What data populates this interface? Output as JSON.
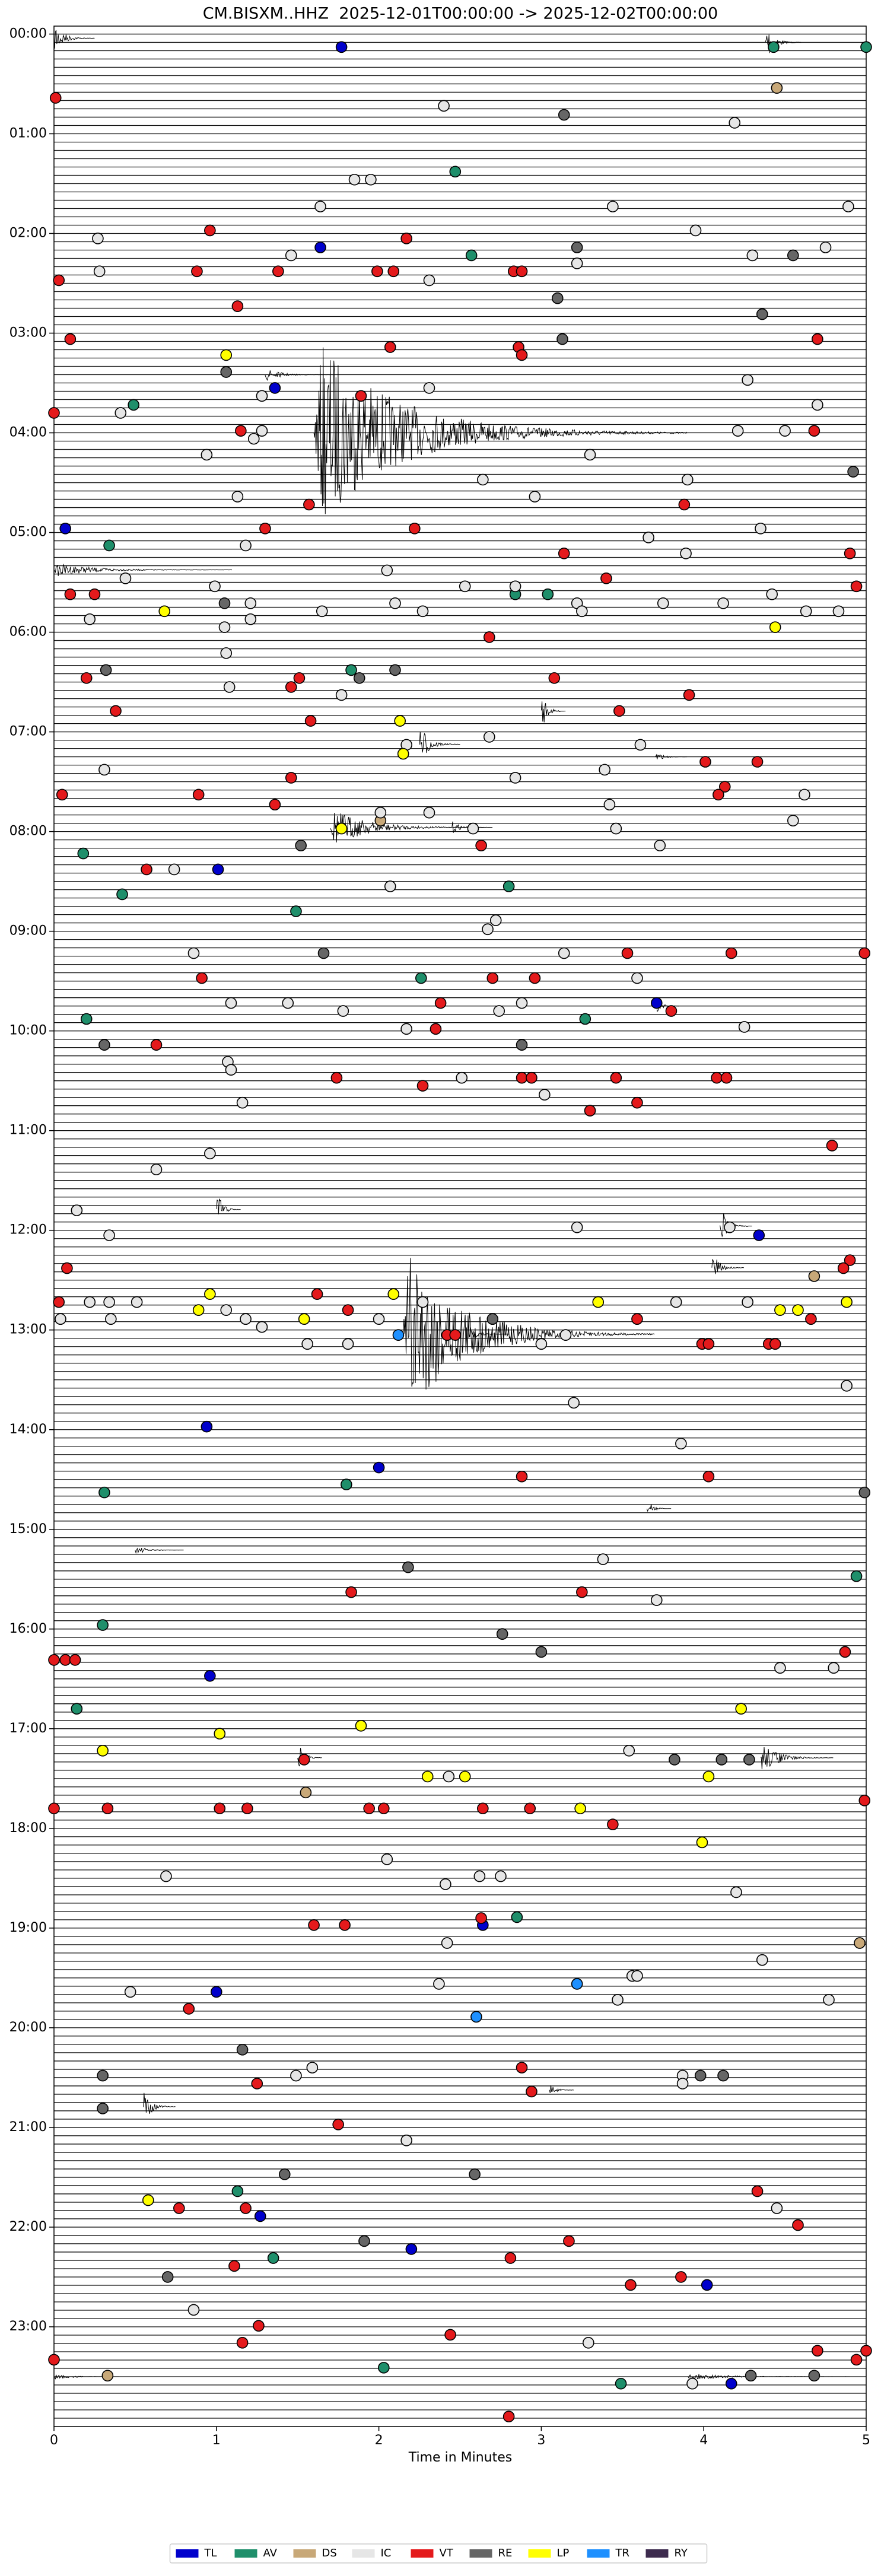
{
  "chart_data": {
    "type": "scatter",
    "title": "CM.BISXM..HHZ  2025-12-01T00:00:00 -> 2025-12-02T00:00:00",
    "x_label": "Time in Minutes",
    "xlim": [
      0,
      5
    ],
    "xticks": [
      0,
      1,
      2,
      3,
      4,
      5
    ],
    "ylim": [
      24,
      -0.08
    ],
    "yticks": [
      {
        "value": 0,
        "label": "00:00"
      },
      {
        "value": 1,
        "label": "01:00"
      },
      {
        "value": 2,
        "label": "02:00"
      },
      {
        "value": 3,
        "label": "03:00"
      },
      {
        "value": 4,
        "label": "04:00"
      },
      {
        "value": 5,
        "label": "05:00"
      },
      {
        "value": 6,
        "label": "06:00"
      },
      {
        "value": 7,
        "label": "07:00"
      },
      {
        "value": 8,
        "label": "08:00"
      },
      {
        "value": 9,
        "label": "09:00"
      },
      {
        "value": 10,
        "label": "10:00"
      },
      {
        "value": 11,
        "label": "11:00"
      },
      {
        "value": 12,
        "label": "12:00"
      },
      {
        "value": 13,
        "label": "13:00"
      },
      {
        "value": 14,
        "label": "14:00"
      },
      {
        "value": 15,
        "label": "15:00"
      },
      {
        "value": 16,
        "label": "16:00"
      },
      {
        "value": 17,
        "label": "17:00"
      },
      {
        "value": 18,
        "label": "18:00"
      },
      {
        "value": 19,
        "label": "19:00"
      },
      {
        "value": 20,
        "label": "20:00"
      },
      {
        "value": 21,
        "label": "21:00"
      },
      {
        "value": 22,
        "label": "22:00"
      },
      {
        "value": 23,
        "label": "23:00"
      }
    ],
    "legend": "bottom",
    "series": [
      {
        "name": "TL",
        "color": "#0000cc",
        "x": [
          1.77,
          1.64,
          1.36,
          0.07,
          1.01,
          3.71,
          4.34,
          0.94,
          2.0,
          0.96,
          2.64,
          1.0,
          1.27,
          2.2,
          4.02,
          4.17
        ],
        "values": [
          0.13,
          2.14,
          3.55,
          4.96,
          8.38,
          9.72,
          12.05,
          13.97,
          14.38,
          16.47,
          18.97,
          19.64,
          21.89,
          22.22,
          22.58,
          23.57
        ]
      },
      {
        "name": "AV",
        "color": "#1f8f6b",
        "x": [
          4.43,
          5.0,
          2.47,
          2.57,
          0.49,
          0.34,
          2.84,
          3.04,
          1.83,
          0.18,
          2.8,
          0.42,
          1.49,
          2.26,
          0.2,
          3.27,
          1.8,
          0.31,
          4.94,
          0.3,
          0.14,
          2.85,
          1.13,
          1.35,
          2.03,
          3.49
        ],
        "values": [
          0.13,
          0.13,
          1.38,
          2.22,
          3.72,
          5.13,
          5.62,
          5.62,
          6.38,
          8.22,
          8.55,
          8.63,
          8.8,
          9.47,
          9.88,
          9.88,
          14.55,
          14.63,
          15.47,
          15.96,
          16.8,
          18.89,
          21.64,
          22.31,
          23.41,
          23.57
        ]
      },
      {
        "name": "DS",
        "color": "#c8a878",
        "x": [
          4.45,
          2.01,
          4.68,
          1.55,
          4.96,
          0.33
        ],
        "values": [
          0.54,
          7.89,
          12.46,
          17.64,
          19.15,
          23.49
        ]
      },
      {
        "name": "IC",
        "color": "#e6e6e6",
        "x": [
          2.4,
          4.19,
          1.85,
          1.95,
          1.64,
          3.44,
          4.89,
          0.27,
          3.95,
          1.46,
          4.3,
          4.75,
          3.22,
          0.28,
          2.31,
          4.27,
          1.28,
          2.31,
          0.41,
          4.7,
          1.28,
          4.21,
          4.5,
          0.94,
          1.23,
          3.3,
          2.64,
          3.9,
          1.13,
          2.96,
          3.66,
          4.35,
          1.18,
          3.89,
          0.44,
          0.99,
          2.05,
          2.53,
          2.84,
          1.21,
          2.1,
          3.22,
          3.75,
          4.12,
          4.42,
          4.63,
          4.83,
          1.65,
          2.27,
          3.25,
          0.22,
          1.05,
          1.21,
          1.06,
          1.77,
          1.08,
          2.17,
          2.68,
          3.61,
          0.31,
          2.84,
          3.39,
          2.01,
          2.31,
          4.62,
          3.42,
          4.55,
          2.58,
          3.46,
          3.73,
          0.74,
          2.07,
          2.72,
          2.67,
          0.86,
          3.14,
          3.59,
          1.09,
          1.44,
          2.88,
          2.74,
          1.78,
          2.17,
          4.25,
          1.07,
          1.09,
          2.51,
          3.02,
          1.16,
          0.96,
          0.63,
          0.14,
          0.34,
          3.22,
          4.16,
          0.22,
          0.34,
          0.51,
          2.27,
          3.83,
          4.27,
          1.06,
          0.04,
          0.35,
          1.18,
          2.0,
          1.28,
          3.15,
          1.56,
          1.81,
          3.0,
          4.88,
          3.2,
          3.86,
          3.38,
          3.71,
          4.47,
          4.8,
          3.54,
          2.43,
          2.05,
          0.69,
          2.41,
          2.62,
          2.75,
          4.2,
          2.42,
          4.36,
          3.56,
          3.59,
          2.37,
          0.47,
          3.47,
          4.77,
          1.59,
          1.49,
          3.87,
          3.87,
          2.17,
          4.45,
          0.86,
          3.29,
          3.93
        ],
        "values": [
          0.72,
          0.89,
          1.46,
          1.46,
          1.73,
          1.73,
          1.73,
          2.05,
          1.97,
          2.22,
          2.22,
          2.14,
          2.3,
          2.38,
          2.47,
          3.47,
          3.63,
          3.55,
          3.8,
          3.72,
          3.98,
          3.98,
          3.98,
          4.22,
          4.06,
          4.22,
          4.47,
          4.47,
          4.64,
          4.64,
          5.05,
          4.96,
          5.13,
          5.21,
          5.46,
          5.54,
          5.38,
          5.54,
          5.54,
          5.71,
          5.71,
          5.71,
          5.71,
          5.71,
          5.62,
          5.79,
          5.79,
          5.79,
          5.79,
          5.79,
          5.87,
          5.95,
          5.87,
          6.21,
          6.63,
          6.55,
          7.13,
          7.05,
          7.13,
          7.38,
          7.46,
          7.38,
          7.81,
          7.81,
          7.63,
          7.73,
          7.89,
          7.97,
          7.97,
          8.14,
          8.38,
          8.55,
          8.89,
          8.98,
          9.22,
          9.22,
          9.47,
          9.72,
          9.72,
          9.72,
          9.8,
          9.8,
          9.98,
          9.96,
          10.31,
          10.39,
          10.47,
          10.64,
          10.72,
          11.23,
          11.39,
          11.8,
          12.05,
          11.97,
          11.97,
          12.72,
          12.72,
          12.72,
          12.72,
          12.72,
          12.72,
          12.8,
          12.89,
          12.89,
          12.89,
          12.89,
          12.97,
          13.05,
          13.14,
          13.14,
          13.14,
          13.56,
          13.73,
          14.14,
          15.3,
          15.71,
          16.39,
          16.39,
          17.22,
          17.48,
          18.31,
          18.48,
          18.56,
          18.48,
          18.48,
          18.64,
          19.15,
          19.32,
          19.48,
          19.48,
          19.56,
          19.64,
          19.72,
          19.72,
          20.4,
          20.48,
          20.48,
          20.56,
          21.13,
          21.81,
          22.83,
          23.16,
          23.57
        ]
      },
      {
        "name": "VT",
        "color": "#e41a1c",
        "x": [
          0.01,
          0.96,
          2.17,
          0.88,
          1.38,
          1.99,
          2.09,
          2.83,
          2.88,
          0.03,
          1.13,
          0.1,
          2.07,
          2.86,
          4.7,
          2.88,
          1.89,
          0,
          1.15,
          4.68,
          1.57,
          3.88,
          1.3,
          2.22,
          3.14,
          4.9,
          3.4,
          4.94,
          0.1,
          0.25,
          2.68,
          0.2,
          1.51,
          1.46,
          3.08,
          3.91,
          0.38,
          1.58,
          3.48,
          4.01,
          4.33,
          1.46,
          4.13,
          4.09,
          0.05,
          0.89,
          1.36,
          2.63,
          0.57,
          3.53,
          4.17,
          4.99,
          0.91,
          2.7,
          2.96,
          2.38,
          3.8,
          2.35,
          0.63,
          1.74,
          2.88,
          2.94,
          3.46,
          4.08,
          4.14,
          2.27,
          3.3,
          3.59,
          4.79,
          0.08,
          4.9,
          4.86,
          0.03,
          1.62,
          1.81,
          3.59,
          4.66,
          2.42,
          2.47,
          3.99,
          4.03,
          4.4,
          4.44,
          2.88,
          4.03,
          1.83,
          3.25,
          0,
          0.07,
          0.13,
          4.87,
          1.54,
          0,
          0.33,
          1.02,
          1.19,
          1.94,
          2.03,
          2.64,
          2.93,
          4.99,
          3.44,
          2.63,
          1.6,
          1.79,
          0.83,
          2.88,
          1.25,
          2.94,
          1.75,
          4.33,
          0.77,
          1.18,
          4.58,
          3.17,
          1.11,
          2.81,
          3.86,
          3.55,
          1.26,
          2.44,
          1.16,
          4.7,
          0,
          4.94,
          5.0,
          2.8
        ],
        "values": [
          0.64,
          1.97,
          2.05,
          2.38,
          2.38,
          2.38,
          2.38,
          2.38,
          2.38,
          2.47,
          2.73,
          3.06,
          3.14,
          3.14,
          3.06,
          3.22,
          3.63,
          3.8,
          3.98,
          3.98,
          4.72,
          4.72,
          4.96,
          4.96,
          5.21,
          5.21,
          5.46,
          5.54,
          5.62,
          5.62,
          6.05,
          6.46,
          6.46,
          6.55,
          6.46,
          6.63,
          6.79,
          6.89,
          6.79,
          7.3,
          7.3,
          7.46,
          7.55,
          7.63,
          7.63,
          7.63,
          7.73,
          8.14,
          8.38,
          9.22,
          9.22,
          9.22,
          9.47,
          9.47,
          9.47,
          9.72,
          9.8,
          9.98,
          10.14,
          10.47,
          10.47,
          10.47,
          10.47,
          10.47,
          10.47,
          10.55,
          10.8,
          10.72,
          11.15,
          12.38,
          12.3,
          12.38,
          12.72,
          12.64,
          12.8,
          12.89,
          12.89,
          13.05,
          13.05,
          13.14,
          13.14,
          13.14,
          13.14,
          14.47,
          14.47,
          15.63,
          15.63,
          16.31,
          16.31,
          16.31,
          16.23,
          17.31,
          17.8,
          17.8,
          17.8,
          17.8,
          17.8,
          17.8,
          17.8,
          17.8,
          17.72,
          17.96,
          18.9,
          18.97,
          18.97,
          19.81,
          20.4,
          20.56,
          20.64,
          20.97,
          21.64,
          21.81,
          21.81,
          21.98,
          22.14,
          22.39,
          22.31,
          22.5,
          22.58,
          22.99,
          23.08,
          23.16,
          23.24,
          23.33,
          23.33,
          23.24,
          23.9
        ]
      },
      {
        "name": "RE",
        "color": "#666666",
        "x": [
          3.14,
          3.22,
          4.55,
          3.1,
          4.36,
          3.13,
          1.06,
          4.92,
          1.05,
          0.32,
          1.88,
          2.1,
          1.52,
          1.66,
          0.31,
          2.88,
          2.7,
          4.99,
          2.18,
          2.76,
          3.0,
          3.82,
          4.11,
          4.28,
          1.16,
          0.3,
          3.98,
          4.12,
          0.3,
          2.59,
          1.42,
          1.91,
          0.7,
          4.29,
          4.68
        ],
        "values": [
          0.81,
          2.14,
          2.22,
          2.65,
          2.81,
          3.06,
          3.39,
          4.39,
          5.71,
          6.38,
          6.46,
          6.38,
          8.14,
          9.22,
          10.14,
          10.14,
          12.89,
          14.63,
          15.38,
          16.05,
          16.23,
          17.31,
          17.31,
          17.31,
          20.22,
          20.48,
          20.48,
          20.48,
          20.81,
          21.47,
          21.47,
          22.14,
          22.5,
          23.49,
          23.49
        ]
      },
      {
        "name": "LP",
        "color": "#ffff00",
        "x": [
          1.06,
          0.68,
          4.44,
          2.13,
          2.15,
          1.77,
          0.96,
          2.09,
          3.35,
          4.88,
          0.89,
          4.47,
          4.58,
          1.54,
          4.23,
          1.89,
          1.02,
          0.3,
          2.3,
          2.53,
          4.03,
          3.24,
          3.99,
          0.58
        ],
        "values": [
          3.22,
          5.79,
          5.95,
          6.89,
          7.22,
          7.97,
          12.64,
          12.64,
          12.72,
          12.72,
          12.8,
          12.8,
          12.8,
          12.89,
          16.8,
          16.97,
          17.05,
          17.22,
          17.48,
          17.48,
          17.48,
          17.8,
          18.14,
          21.73
        ]
      },
      {
        "name": "TR",
        "color": "#1e90ff",
        "x": [
          2.12,
          3.22,
          2.6
        ],
        "values": [
          13.05,
          19.56,
          19.89
        ]
      },
      {
        "name": "RY",
        "color": "#3d2b4e",
        "x": [],
        "values": []
      }
    ]
  }
}
